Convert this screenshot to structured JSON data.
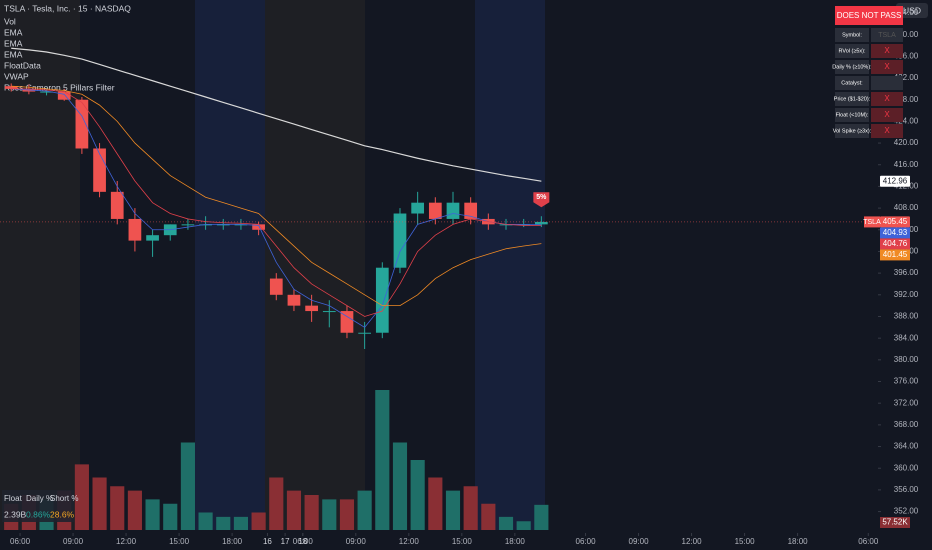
{
  "header": {
    "symbol": "TSLA · Tesla, Inc. · 15 · NASDAQ",
    "indicators": [
      "Vol",
      "EMA",
      "EMA",
      "EMA",
      "FloatData",
      "VWAP",
      "Ross Cameron 5 Pillars Filter"
    ],
    "currency": "USD"
  },
  "filter_table": {
    "title": "DOES NOT PASS",
    "rows": [
      [
        "Symbol:",
        "TSLA"
      ],
      [
        "RVol (≥5x):",
        "X"
      ],
      [
        "Daily % (≥10%):",
        "X"
      ],
      [
        "Catalyst:"
      ],
      [
        "Price ($1-$20):",
        "X"
      ],
      [
        "Float (<10M):",
        "X"
      ],
      [
        "Vol Spike (≥3x):",
        "X"
      ]
    ]
  },
  "float_box": {
    "headers": [
      "Float",
      "Daily %",
      "Short %"
    ],
    "values": [
      "2.39B",
      "0.86%",
      "28.6%"
    ]
  },
  "chart_data": {
    "type": "candlestick",
    "marker": "5%",
    "price_tag": "TSLA",
    "x": [
      1.5,
      2.5,
      3.5,
      4.5,
      5.5,
      6.5,
      7.5,
      8.5,
      9.5,
      10.5,
      11.5,
      12.5,
      13.5,
      14.5,
      15.5,
      16.5,
      17.5,
      18.5,
      19.5,
      20.5,
      21.5,
      22.5,
      23.5,
      24.5,
      25.5,
      26.5,
      27.5,
      28.5,
      29.5,
      30.5,
      31.5
    ],
    "open": [
      430.5,
      430,
      429.5,
      429.5,
      428,
      419,
      411,
      406,
      402,
      403,
      405,
      405,
      405,
      405,
      405,
      395,
      392,
      390,
      389,
      389,
      385,
      385,
      397,
      407,
      409,
      406,
      409,
      406,
      405,
      405,
      405
    ],
    "high": [
      431,
      430.8,
      430.2,
      430,
      428.5,
      420,
      413,
      408,
      404,
      405,
      406,
      406.5,
      406,
      406,
      405.5,
      396,
      393,
      392,
      391,
      390,
      387,
      398,
      408,
      411,
      410,
      411,
      410,
      407,
      406,
      406,
      406.5
    ],
    "low": [
      429.5,
      429,
      428.8,
      427.8,
      418,
      410,
      405,
      400,
      399,
      402,
      404,
      404,
      404,
      404,
      403,
      391,
      389,
      387,
      386,
      384,
      382,
      384,
      396,
      405,
      405,
      405,
      405,
      404,
      404,
      404.5,
      404.5
    ],
    "close": [
      430,
      429.5,
      429.5,
      428,
      419,
      411,
      406,
      402,
      403,
      405,
      405,
      405,
      405,
      405,
      404,
      392,
      390,
      389,
      389,
      385,
      385,
      397,
      407,
      409,
      406,
      409,
      406,
      405,
      405,
      405,
      405.45
    ],
    "volume": {
      "name": "Vol",
      "values": [
        60,
        80,
        70,
        90,
        150,
        120,
        100,
        90,
        70,
        60,
        200,
        40,
        30,
        30,
        40,
        120,
        90,
        80,
        70,
        70,
        90,
        320,
        200,
        160,
        120,
        90,
        100,
        60,
        30,
        20,
        57.52
      ],
      "last_label": "57.52K",
      "up_color": "#1f6f68",
      "down_color": "#8a2f34"
    },
    "series": [
      {
        "name": "EMA",
        "color": "#d9d9d9",
        "values": [
          437.5,
          437.2,
          436.8,
          436.2,
          435.5,
          434.5,
          433.5,
          432.5,
          431.5,
          430.5,
          429.5,
          428.5,
          427.5,
          426.5,
          425.5,
          424.5,
          423.5,
          422.5,
          421.5,
          420.5,
          419.5,
          418.8,
          418,
          417.2,
          416.5,
          415.8,
          415.2,
          414.6,
          414,
          413.5,
          412.96
        ]
      },
      {
        "name": "EMA",
        "color": "#3f63d8",
        "values": [
          430,
          429.8,
          429.6,
          429,
          425,
          418,
          412,
          407,
          404,
          404,
          404.5,
          405,
          405,
          405,
          404.8,
          398,
          393,
          391,
          390,
          388,
          386,
          390,
          400,
          405,
          406,
          407,
          406.5,
          405.5,
          405,
          405,
          404.93
        ]
      },
      {
        "name": "EMA",
        "color": "#e0404a",
        "values": [
          430,
          430,
          429.8,
          429.5,
          427.5,
          423,
          418,
          413,
          409,
          407,
          406,
          405.5,
          405.3,
          405.2,
          405,
          401,
          397,
          394,
          392,
          390,
          388,
          389,
          394,
          400,
          403,
          405,
          406,
          405.5,
          405,
          404.8,
          404.76
        ]
      },
      {
        "name": "VWAP",
        "color": "#f08a24",
        "values": [
          430.5,
          430.3,
          430,
          429.7,
          429,
          427,
          424,
          420,
          417,
          414,
          412,
          410,
          409,
          408,
          407,
          404,
          401,
          398,
          396,
          394,
          392,
          390,
          390,
          392,
          395,
          397,
          398.5,
          399.5,
          400.5,
          401,
          401.45
        ]
      }
    ],
    "up_color": "#26a69a",
    "down_color": "#ef5350",
    "xlim": [
      0.866,
      50.55
    ],
    "xticks": [
      {
        "value": 2,
        "label": "06:00"
      },
      {
        "value": 5,
        "label": "09:00"
      },
      {
        "value": 8,
        "label": "12:00"
      },
      {
        "value": 11,
        "label": "15:00"
      },
      {
        "value": 14,
        "label": "18:00"
      },
      16,
      {
        "value": 18,
        "label": "06:00"
      },
      {
        "value": 21,
        "label": "09:00"
      },
      {
        "value": 24,
        "label": "12:00"
      },
      {
        "value": 27,
        "label": "15:00"
      },
      {
        "value": 30,
        "label": "18:00"
      },
      17,
      {
        "value": 34,
        "label": "06:00"
      },
      {
        "value": 37,
        "label": "09:00"
      },
      {
        "value": 40,
        "label": "12:00"
      },
      {
        "value": 43,
        "label": "15:00"
      },
      {
        "value": 46,
        "label": "18:00"
      },
      18,
      {
        "value": 50,
        "label": "06:00"
      }
    ],
    "xtick_values": [
      2,
      5,
      8,
      11,
      14,
      16,
      18,
      21,
      24,
      27,
      30,
      32,
      34,
      37,
      40,
      43,
      46,
      48,
      50
    ],
    "ylim": [
      348.6,
      446.4
    ],
    "yticks": [
      {
        "value": 352,
        "label": "352.00"
      },
      {
        "value": 356,
        "label": "356.00"
      },
      {
        "value": 360,
        "label": "360.00"
      },
      {
        "value": 364,
        "label": "364.00"
      },
      {
        "value": 368,
        "label": "368.00"
      },
      {
        "value": 372,
        "label": "372.00"
      },
      {
        "value": 376,
        "label": "376.00"
      },
      {
        "value": 380,
        "label": "380.00"
      },
      {
        "value": 384,
        "label": "384.00"
      },
      {
        "value": 388,
        "label": "388.00"
      },
      {
        "value": 392,
        "label": "392.00"
      },
      {
        "value": 396,
        "label": "396.00"
      },
      {
        "value": 400,
        "label": "400.00"
      },
      {
        "value": 404,
        "label": "404.00"
      },
      {
        "value": 408,
        "label": "408.00"
      },
      {
        "value": 412,
        "label": "412.00"
      },
      {
        "value": 416,
        "label": "416.00"
      },
      {
        "value": 420,
        "label": "420.00"
      },
      {
        "value": 424,
        "label": "424.00"
      },
      {
        "value": 428,
        "label": "428.00"
      },
      {
        "value": 432,
        "label": "432.00"
      },
      {
        "value": 436,
        "label": "436.00"
      },
      {
        "value": 440,
        "label": "440.00"
      },
      {
        "value": 444,
        "label": "444.00"
      }
    ]
  }
}
